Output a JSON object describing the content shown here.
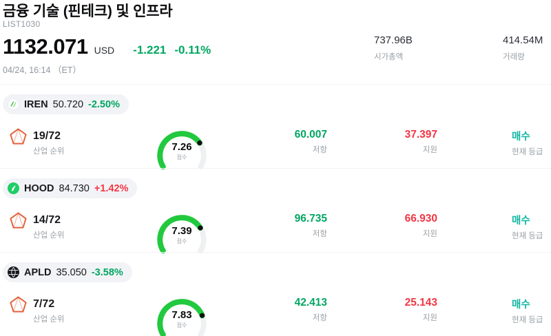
{
  "colors": {
    "down": "#00a661",
    "up": "#f23645",
    "buy": "#0fb5a3",
    "gauge": "#22c93e"
  },
  "header": {
    "title": "금융 기술 (핀테크) 및 인프라",
    "list_id": "LIST1030",
    "price": "1132.071",
    "currency": "USD",
    "change_abs": "-1.221",
    "change_pct": "-0.11%",
    "trend": "down",
    "datetime": "04/24, 16:14 （ET）",
    "stats": [
      {
        "value": "737.96B",
        "label": "시가총액"
      },
      {
        "value": "414.54M",
        "label": "거래량"
      }
    ]
  },
  "stocks": [
    {
      "ticker": "IREN",
      "price": "50.720",
      "change": "-2.50%",
      "trend": "down",
      "rank": "19/72",
      "rank_label": "산업 순위",
      "score": "7.26",
      "score_value": 7.26,
      "score_label": "점수",
      "resistance": "60.007",
      "resistance_label": "저항",
      "support": "37.397",
      "support_label": "지원",
      "rating": "매수",
      "rating_label": "현재 등급"
    },
    {
      "ticker": "HOOD",
      "price": "84.730",
      "change": "+1.42%",
      "trend": "up",
      "rank": "14/72",
      "rank_label": "산업 순위",
      "score": "7.39",
      "score_value": 7.39,
      "score_label": "점수",
      "resistance": "96.735",
      "resistance_label": "저항",
      "support": "66.930",
      "support_label": "지원",
      "rating": "매수",
      "rating_label": "현재 등급"
    },
    {
      "ticker": "APLD",
      "price": "35.050",
      "change": "-3.58%",
      "trend": "down",
      "rank": "7/72",
      "rank_label": "산업 순위",
      "score": "7.83",
      "score_value": 7.83,
      "score_label": "점수",
      "resistance": "42.413",
      "resistance_label": "저항",
      "support": "25.143",
      "support_label": "지원",
      "rating": "매수",
      "rating_label": "현재 등급"
    }
  ]
}
